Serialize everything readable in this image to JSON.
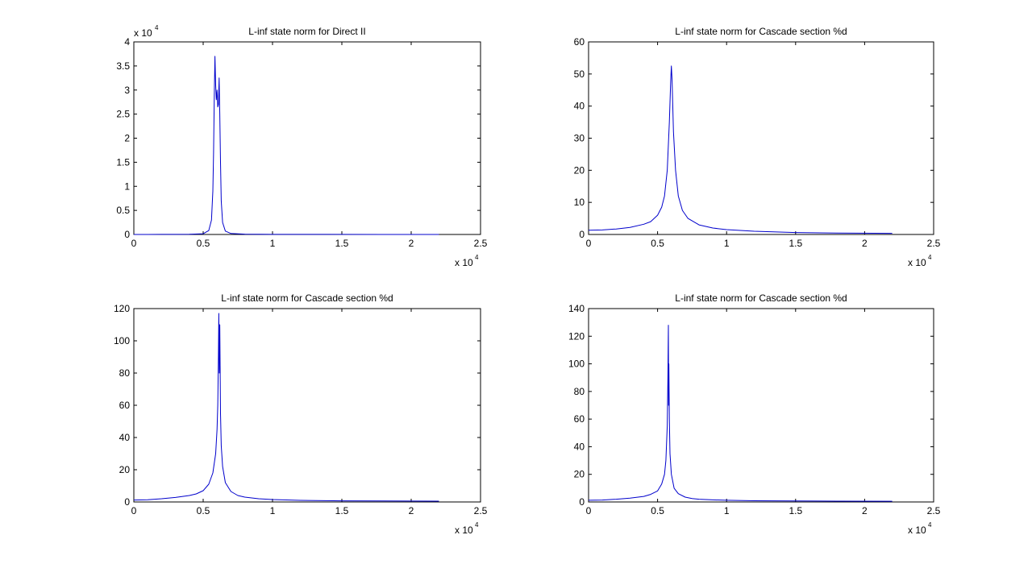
{
  "figure": {
    "background": "#ffffff",
    "axes_color": "#000000",
    "line_color": "#0000cc"
  },
  "chart_data": [
    {
      "type": "line",
      "title": "L-inf state norm for Direct II",
      "xlabel": "",
      "ylabel": "",
      "xlim": [
        0,
        25000
      ],
      "ylim": [
        0,
        40000
      ],
      "x_ticks": [
        0,
        0.5,
        1,
        1.5,
        2,
        2.5
      ],
      "y_ticks": [
        0,
        0.5,
        1,
        1.5,
        2,
        2.5,
        3,
        3.5,
        4
      ],
      "x_tick_labels": [
        "0",
        "0.5",
        "1",
        "1.5",
        "2",
        "2.5"
      ],
      "y_tick_labels": [
        "0",
        "0.5",
        "1",
        "1.5",
        "2",
        "2.5",
        "3",
        "3.5",
        "4"
      ],
      "x_multiplier": "x 10",
      "x_multiplier_exp": "4",
      "y_multiplier": "x 10",
      "y_multiplier_exp": "4",
      "grid": false,
      "series": [
        {
          "x": [
            0,
            1000,
            2000,
            3000,
            4000,
            5000,
            5400,
            5600,
            5700,
            5750,
            5800,
            5850,
            5900,
            5950,
            6000,
            6050,
            6100,
            6150,
            6200,
            6250,
            6300,
            6400,
            6600,
            7000,
            8000,
            10000,
            14000,
            18000,
            22000
          ],
          "y": [
            5,
            8,
            12,
            20,
            40,
            150,
            800,
            3000,
            9000,
            17000,
            29000,
            37000,
            31000,
            28000,
            30000,
            26500,
            27000,
            32500,
            25000,
            15000,
            7000,
            2500,
            700,
            200,
            60,
            25,
            12,
            8,
            6
          ]
        }
      ]
    },
    {
      "type": "line",
      "title": "L-inf state norm for Cascade section %d",
      "xlabel": "",
      "ylabel": "",
      "xlim": [
        0,
        25000
      ],
      "ylim": [
        0,
        60
      ],
      "x_ticks": [
        0,
        0.5,
        1,
        1.5,
        2,
        2.5
      ],
      "y_ticks": [
        0,
        10,
        20,
        30,
        40,
        50,
        60
      ],
      "x_tick_labels": [
        "0",
        "0.5",
        "1",
        "1.5",
        "2",
        "2.5"
      ],
      "y_tick_labels": [
        "0",
        "10",
        "20",
        "30",
        "40",
        "50",
        "60"
      ],
      "x_multiplier": "x 10",
      "x_multiplier_exp": "4",
      "grid": false,
      "series": [
        {
          "x": [
            0,
            1000,
            2000,
            3000,
            4000,
            4500,
            5000,
            5300,
            5500,
            5700,
            5850,
            5950,
            6000,
            6050,
            6150,
            6300,
            6500,
            6800,
            7200,
            8000,
            9000,
            10000,
            12000,
            15000,
            18000,
            22000
          ],
          "y": [
            1.3,
            1.4,
            1.7,
            2.2,
            3.2,
            4.0,
            6.0,
            8.5,
            12,
            20,
            35,
            48,
            52.5,
            48,
            32,
            20,
            12,
            7.5,
            5,
            3,
            2,
            1.5,
            1.0,
            0.6,
            0.45,
            0.35
          ]
        }
      ]
    },
    {
      "type": "line",
      "title": "L-inf state norm for Cascade section %d",
      "xlabel": "",
      "ylabel": "",
      "xlim": [
        0,
        25000
      ],
      "ylim": [
        0,
        120
      ],
      "x_ticks": [
        0,
        0.5,
        1,
        1.5,
        2,
        2.5
      ],
      "y_ticks": [
        0,
        20,
        40,
        60,
        80,
        100,
        120
      ],
      "x_tick_labels": [
        "0",
        "0.5",
        "1",
        "1.5",
        "2",
        "2.5"
      ],
      "y_tick_labels": [
        "0",
        "20",
        "40",
        "60",
        "80",
        "100",
        "120"
      ],
      "x_multiplier": "x 10",
      "x_multiplier_exp": "4",
      "grid": false,
      "series": [
        {
          "x": [
            0,
            1000,
            2000,
            3000,
            4000,
            4500,
            5000,
            5400,
            5700,
            5900,
            6000,
            6050,
            6100,
            6130,
            6160,
            6200,
            6250,
            6300,
            6400,
            6600,
            7000,
            7500,
            8000,
            9000,
            10000,
            12000,
            15000,
            18000,
            22000
          ],
          "y": [
            1.2,
            1.4,
            2.0,
            2.8,
            4.0,
            5.0,
            7.0,
            11,
            18,
            30,
            45,
            60,
            90,
            117,
            80,
            110,
            55,
            35,
            22,
            12,
            6.5,
            4,
            3,
            2,
            1.5,
            1.0,
            0.7,
            0.6,
            0.5
          ]
        }
      ]
    },
    {
      "type": "line",
      "title": "L-inf state norm for Cascade section %d",
      "xlabel": "",
      "ylabel": "",
      "xlim": [
        0,
        25000
      ],
      "ylim": [
        0,
        140
      ],
      "x_ticks": [
        0,
        0.5,
        1,
        1.5,
        2,
        2.5
      ],
      "y_ticks": [
        0,
        20,
        40,
        60,
        80,
        100,
        120,
        140
      ],
      "x_tick_labels": [
        "0",
        "0.5",
        "1",
        "1.5",
        "2",
        "2.5"
      ],
      "y_tick_labels": [
        "0",
        "20",
        "40",
        "60",
        "80",
        "100",
        "120",
        "140"
      ],
      "x_multiplier": "x 10",
      "x_multiplier_exp": "4",
      "grid": false,
      "series": [
        {
          "x": [
            0,
            1000,
            2000,
            3000,
            4000,
            4500,
            5000,
            5300,
            5500,
            5600,
            5700,
            5750,
            5780,
            5800,
            5820,
            5850,
            5900,
            6000,
            6200,
            6500,
            7000,
            7500,
            8000,
            9000,
            10000,
            12000,
            15000,
            18000,
            22000
          ],
          "y": [
            1.2,
            1.4,
            2.0,
            2.8,
            4.0,
            5.5,
            8.0,
            13,
            20,
            30,
            55,
            90,
            128,
            70,
            100,
            60,
            35,
            20,
            10,
            6,
            3.5,
            2.5,
            2.0,
            1.5,
            1.2,
            0.9,
            0.7,
            0.6,
            0.5
          ]
        }
      ]
    }
  ]
}
